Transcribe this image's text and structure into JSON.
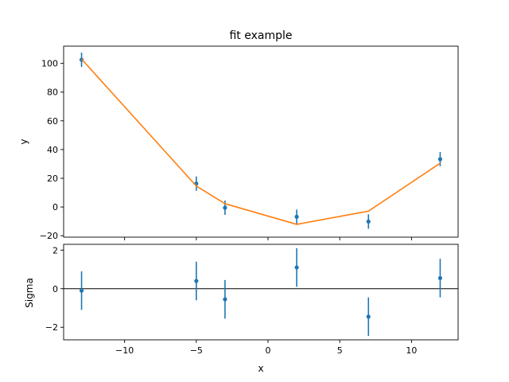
{
  "chart_data": [
    {
      "type": "scatter",
      "title": "fit example",
      "xlabel": "",
      "ylabel": "y",
      "xlim": [
        -14.25,
        13.25
      ],
      "ylim": [
        -21,
        112
      ],
      "xticks": [
        -10,
        -5,
        0,
        5,
        10
      ],
      "show_xtick_labels": false,
      "yticks": [
        -20,
        0,
        20,
        40,
        60,
        80,
        100
      ],
      "ytick_labels": [
        "−20",
        "0",
        "20",
        "40",
        "60",
        "80",
        "100"
      ],
      "grid": false,
      "series": [
        {
          "kind": "errorbar-points",
          "color": "#1f77b4",
          "x": [
            -13,
            -5,
            -3,
            2,
            7,
            12
          ],
          "y": [
            102.5,
            16.3,
            -0.5,
            -6.8,
            -10.1,
            33.3
          ],
          "yerr": [
            5,
            5,
            5,
            5,
            5,
            5
          ]
        },
        {
          "kind": "line",
          "color": "#ff7f0e",
          "x": [
            -13,
            -5,
            -3,
            2,
            7,
            12
          ],
          "y": [
            103,
            14.6,
            2.3,
            -12.1,
            -2.9,
            30.5
          ]
        }
      ]
    },
    {
      "type": "scatter",
      "title": "",
      "xlabel": "x",
      "ylabel": "Sigma",
      "xlim": [
        -14.25,
        13.25
      ],
      "ylim": [
        -2.65,
        2.3
      ],
      "xticks": [
        -10,
        -5,
        0,
        5,
        10
      ],
      "xtick_labels": [
        "−10",
        "−5",
        "0",
        "5",
        "10"
      ],
      "yticks": [
        -2,
        0,
        2
      ],
      "ytick_labels": [
        "−2",
        "0",
        "2"
      ],
      "grid": false,
      "reference_line": {
        "y": 0,
        "color": "#000000"
      },
      "series": [
        {
          "kind": "errorbar-points",
          "color": "#1f77b4",
          "x": [
            -13,
            -5,
            -3,
            2,
            7,
            12
          ],
          "y": [
            -0.1,
            0.4,
            -0.55,
            1.1,
            -1.45,
            0.55
          ],
          "yerr": [
            1,
            1,
            1,
            1,
            1,
            1
          ]
        }
      ]
    }
  ]
}
